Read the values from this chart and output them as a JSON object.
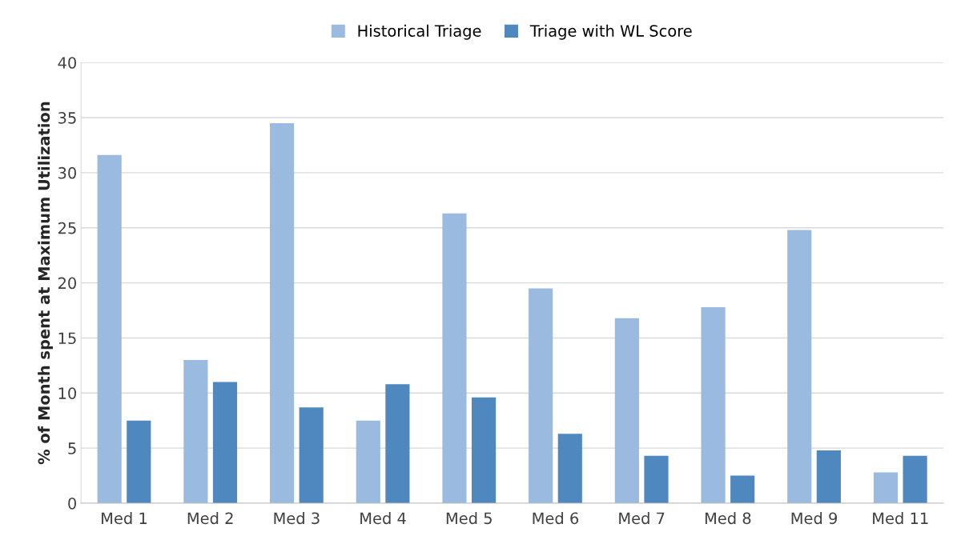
{
  "chart_data": {
    "type": "bar",
    "ylabel": "% of Month spent at Maximum Utilization",
    "categories": [
      "Med 1",
      "Med 2",
      "Med 3",
      "Med 4",
      "Med 5",
      "Med 6",
      "Med 7",
      "Med 8",
      "Med 9",
      "Med 11"
    ],
    "series": [
      {
        "name": "Historical Triage",
        "color": "#9bbae0",
        "values": [
          31.6,
          13.0,
          34.5,
          7.5,
          26.3,
          19.5,
          16.8,
          17.8,
          24.8,
          2.8
        ]
      },
      {
        "name": "Triage with WL Score",
        "color": "#4f88be",
        "values": [
          7.5,
          11.0,
          8.7,
          10.8,
          9.6,
          6.3,
          4.3,
          2.5,
          4.8,
          4.3
        ]
      }
    ],
    "ylim": [
      0,
      40
    ],
    "yticks": [
      0,
      5,
      10,
      15,
      20,
      25,
      30,
      35,
      40
    ],
    "grid": "y",
    "legend": "top"
  }
}
